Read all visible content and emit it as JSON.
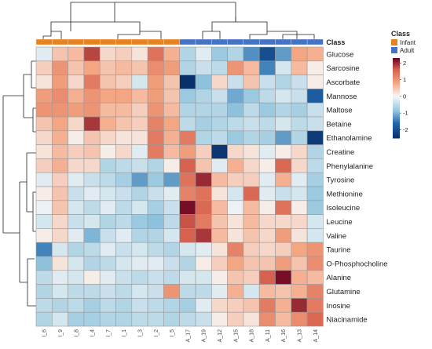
{
  "chart_data": {
    "type": "heatmap",
    "class_annotation_label": "Class",
    "rows": [
      "Glucose",
      "Sarcosine",
      "Ascorbate",
      "Mannose",
      "Maltose",
      "Betaine",
      "Ethanolamine",
      "Creatine",
      "Phenylalanine",
      "Tyrosine",
      "Methionine",
      "Isoleucine",
      "Leucine",
      "Valine",
      "Taurine",
      "O-Phosphocholine",
      "Alanine",
      "Glutamine",
      "Inosine",
      "Niacinamide"
    ],
    "columns": [
      "I_6",
      "I_9",
      "I_8",
      "I_4",
      "I_7",
      "I_1",
      "I_3",
      "I_2",
      "I_5",
      "A_17",
      "A_19",
      "A_12",
      "A_15",
      "A_18",
      "A_11",
      "A_16",
      "A_13",
      "A_14"
    ],
    "column_class": [
      "Infant",
      "Infant",
      "Infant",
      "Infant",
      "Infant",
      "Infant",
      "Infant",
      "Infant",
      "Infant",
      "Adult",
      "Adult",
      "Adult",
      "Adult",
      "Adult",
      "Adult",
      "Adult",
      "Adult",
      "Adult"
    ],
    "values": [
      [
        -0.2,
        0.5,
        0.6,
        1.8,
        0.3,
        0.4,
        0.2,
        1.4,
        0.7,
        -0.6,
        -0.2,
        -0.8,
        -0.6,
        -1.3,
        -2.0,
        -1.2,
        0.8,
        0.7
      ],
      [
        0.4,
        1.0,
        0.5,
        0.8,
        0.5,
        0.6,
        0.5,
        1.1,
        0.9,
        -0.6,
        -0.4,
        -0.5,
        1.0,
        0.6,
        -1.4,
        -0.3,
        0.6,
        0.1
      ],
      [
        0.2,
        0.9,
        0.3,
        1.3,
        0.5,
        0.4,
        -0.3,
        0.9,
        0.5,
        -2.5,
        -0.9,
        0.3,
        -0.4,
        0.5,
        -0.4,
        -0.6,
        -0.4,
        0.1
      ],
      [
        0.9,
        1.1,
        0.7,
        1.0,
        0.8,
        0.8,
        0.6,
        0.9,
        0.5,
        -0.8,
        -0.6,
        -0.4,
        -1.1,
        -0.8,
        -0.5,
        -0.3,
        -0.4,
        -1.8
      ],
      [
        1.0,
        1.0,
        0.9,
        1.0,
        0.6,
        0.6,
        0.4,
        1.0,
        0.6,
        -0.6,
        -0.6,
        -0.6,
        -0.9,
        -0.5,
        -0.8,
        -0.6,
        -0.7,
        -0.4
      ],
      [
        0.5,
        0.8,
        0.3,
        1.9,
        0.7,
        0.5,
        0.4,
        1.2,
        0.8,
        -0.5,
        -0.7,
        -0.6,
        -0.5,
        -0.4,
        -0.5,
        -0.3,
        -0.5,
        -0.4
      ],
      [
        0.3,
        0.7,
        0.1,
        0.5,
        0.3,
        0.2,
        0.2,
        1.3,
        0.7,
        1.3,
        -0.6,
        -0.5,
        -0.8,
        -0.6,
        -0.7,
        -1.2,
        -0.6,
        -2.3
      ],
      [
        0.2,
        0.6,
        0.4,
        0.5,
        0.1,
        0.3,
        -0.2,
        1.3,
        0.6,
        0.9,
        0.4,
        -2.4,
        0.3,
        0.2,
        -0.2,
        0.1,
        0.3,
        -0.6
      ],
      [
        0.4,
        0.7,
        0.3,
        0.3,
        -0.6,
        -0.5,
        -0.4,
        -0.6,
        0.1,
        1.6,
        0.5,
        -0.2,
        0.7,
        0.3,
        0.1,
        1.5,
        0.3,
        -0.5
      ],
      [
        -0.2,
        0.4,
        -0.2,
        -0.4,
        -0.5,
        -0.7,
        -1.2,
        -0.8,
        -1.2,
        1.4,
        2.0,
        0.6,
        0.4,
        0.4,
        -0.2,
        0.7,
        -0.2,
        -0.7
      ],
      [
        0.1,
        0.5,
        -0.4,
        -0.2,
        -0.3,
        -0.4,
        -0.6,
        -0.4,
        -0.2,
        1.2,
        1.4,
        0.2,
        -0.3,
        1.5,
        -0.2,
        -0.4,
        -0.3,
        -0.8
      ],
      [
        -0.1,
        0.5,
        -0.3,
        -0.5,
        -0.2,
        -0.5,
        -0.3,
        -0.7,
        -0.4,
        2.2,
        1.5,
        0.6,
        -0.1,
        0.6,
        0.1,
        1.4,
        0.1,
        -0.8
      ],
      [
        -0.3,
        0.3,
        -0.4,
        -0.3,
        -0.6,
        -0.5,
        -0.8,
        -0.9,
        -0.5,
        1.7,
        1.3,
        0.5,
        0.2,
        0.6,
        0.3,
        0.3,
        0.3,
        -0.3
      ],
      [
        0.1,
        0.3,
        -0.2,
        -1.0,
        -0.4,
        -0.2,
        -0.6,
        -0.6,
        -0.3,
        1.6,
        1.9,
        0.6,
        0.2,
        0.5,
        0.3,
        0.9,
        0.2,
        -0.3
      ],
      [
        -1.4,
        -0.3,
        -0.6,
        -0.5,
        -0.2,
        -0.4,
        -0.3,
        -0.5,
        -0.6,
        -0.3,
        -0.2,
        0.2,
        1.2,
        0.4,
        0.3,
        0.4,
        0.8,
        1.0
      ],
      [
        -0.9,
        0.2,
        -0.3,
        -0.6,
        -0.5,
        -0.3,
        -0.2,
        -0.2,
        -0.4,
        -0.6,
        0.1,
        0.4,
        0.8,
        0.5,
        0.5,
        0.9,
        0.5,
        1.1
      ],
      [
        -0.5,
        -0.2,
        -0.3,
        0.1,
        -0.2,
        -0.4,
        -0.5,
        -0.4,
        -0.5,
        -0.3,
        -0.3,
        0.1,
        0.5,
        0.4,
        1.6,
        2.2,
        0.7,
        0.6
      ],
      [
        -0.6,
        -0.3,
        -0.5,
        -0.5,
        -0.4,
        -0.5,
        -0.3,
        -0.4,
        1.0,
        -0.5,
        -0.5,
        -0.2,
        0.7,
        -0.3,
        0.6,
        0.5,
        0.7,
        1.2
      ],
      [
        -0.5,
        -0.6,
        -0.5,
        -0.7,
        -0.5,
        -0.6,
        -0.4,
        -0.5,
        -0.6,
        -0.7,
        -0.2,
        0.3,
        0.4,
        0.5,
        1.3,
        0.7,
        2.0,
        1.3
      ],
      [
        -0.6,
        -0.3,
        -0.7,
        -0.7,
        -0.6,
        -0.6,
        -0.5,
        -0.5,
        -0.6,
        -0.5,
        -0.4,
        0.1,
        0.4,
        0.2,
        1.1,
        0.6,
        1.1,
        1.5
      ]
    ],
    "color_scale": {
      "min": -2.5,
      "max": 2.3,
      "ticks": [
        2,
        1,
        0,
        -1,
        -2
      ],
      "low_color": "#08306b",
      "mid_color": "#f7f7f7",
      "high_color": "#67001f"
    },
    "legend": {
      "title": "Class",
      "placement": "top-right",
      "entries": [
        {
          "label": "Infant",
          "color": "#e8821e"
        },
        {
          "label": "Adult",
          "color": "#4472c4"
        }
      ]
    },
    "row_dendrogram_side": "left",
    "column_dendrogram_side": "top"
  }
}
